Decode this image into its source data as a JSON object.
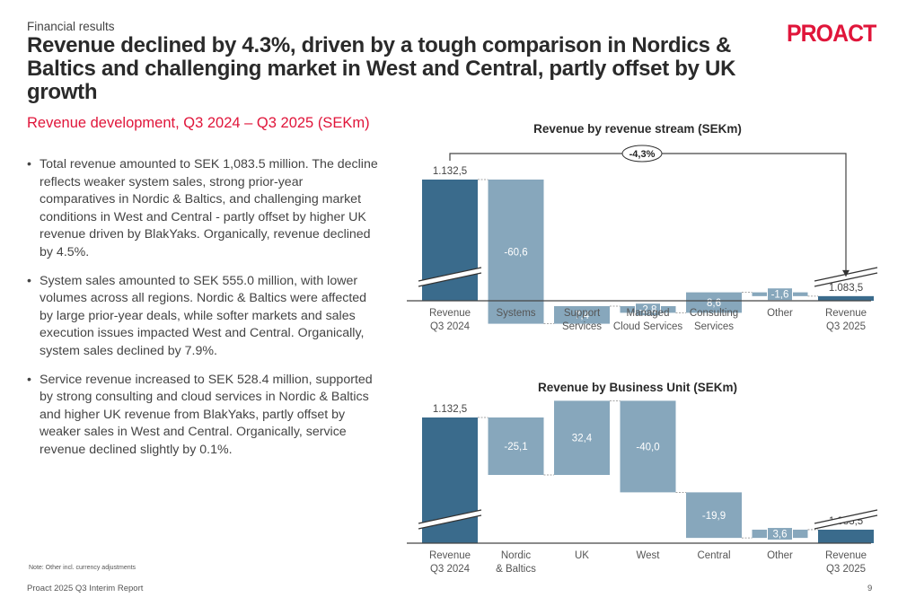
{
  "header": {
    "kicker": "Financial results",
    "title": "Revenue declined by 4.3%, driven by a tough comparison in Nordics & Baltics and challenging market in West and Central, partly offset by UK growth",
    "subtitle": "Revenue development, Q3 2024 – Q3 2025 (SEKm)",
    "logo": "PROACT"
  },
  "bullets": [
    "Total revenue amounted to SEK 1,083.5 million. The decline reflects weaker system sales, strong prior-year comparatives in Nordic & Baltics, and challenging market conditions in West and Central - partly offset by higher UK revenue driven by BlakYaks. Organically, revenue declined by 4.5%.",
    "System sales amounted to SEK 555.0 million, with lower volumes across all regions. Nordic & Baltics were affected by large prior-year deals, while softer markets and sales execution issues impacted West and Central. Organically, system sales declined by 7.9%.",
    "Service revenue increased to SEK 528.4 million, supported by strong consulting and cloud services in Nordic & Baltics and higher UK revenue from BlakYaks, partly offset by weaker sales in West and Central. Organically, service revenue declined slightly by 0.1%."
  ],
  "bullet_glyph": "•",
  "footer": {
    "note": "Note: Other incl. currency adjustments",
    "report": "Proact 2025 Q3 Interim Report",
    "page": "9"
  },
  "colors": {
    "accent": "#e0153a",
    "total_bar": "#3a6b8c",
    "delta_bar": "#87a7bc",
    "axis": "#555555"
  },
  "chart_data": [
    {
      "type": "bar",
      "subtype": "waterfall",
      "title": "Revenue by revenue stream (SEKm)",
      "categories": [
        "Revenue\nQ3 2024",
        "Systems",
        "Support\nServices",
        "Managed\nCloud Services",
        "Consulting\nServices",
        "Other",
        "Revenue\nQ3 2025"
      ],
      "values": [
        1132.5,
        -60.6,
        7.4,
        -2.8,
        8.6,
        -1.6,
        1083.5
      ],
      "labels": [
        "1.132,5",
        "-60,6",
        "7,4",
        "-2,8",
        "8,6",
        "-1,6",
        "1.083,5"
      ],
      "kinds": [
        "total",
        "delta",
        "delta",
        "delta",
        "delta",
        "delta",
        "total"
      ],
      "change_badge": "-4,3%",
      "axis_break": true,
      "ylim": [
        1040,
        1140
      ],
      "xlabel": "",
      "ylabel": "",
      "grid": false
    },
    {
      "type": "bar",
      "subtype": "waterfall",
      "title": "Revenue by Business Unit (SEKm)",
      "categories": [
        "Revenue\nQ3 2024",
        "Nordic\n& Baltics",
        "UK",
        "West",
        "Central",
        "Other",
        "Revenue\nQ3 2025"
      ],
      "values": [
        1132.5,
        -25.1,
        32.4,
        -40.0,
        -19.9,
        3.6,
        1083.5
      ],
      "labels": [
        "1.132,5",
        "-25,1",
        "32,4",
        "-40,0",
        "-19,9",
        "3,6",
        "1.083,5"
      ],
      "kinds": [
        "total",
        "delta",
        "delta",
        "delta",
        "delta",
        "delta",
        "total"
      ],
      "axis_break": true,
      "ylim": [
        1040,
        1140
      ],
      "xlabel": "",
      "ylabel": "",
      "grid": false
    }
  ]
}
